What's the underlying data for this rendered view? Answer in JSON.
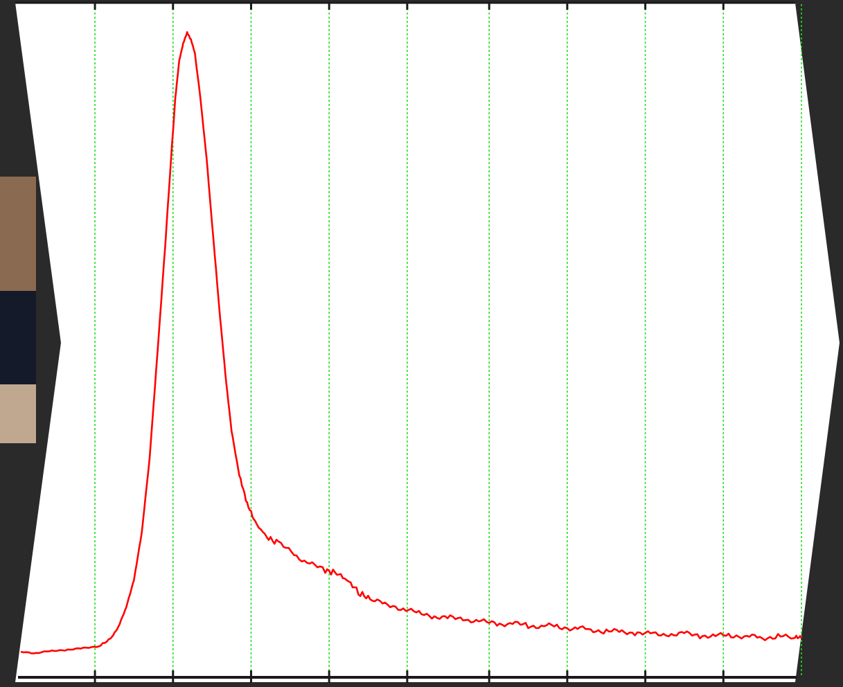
{
  "chart_data": {
    "type": "line",
    "title": "",
    "xlabel": "",
    "ylabel": "",
    "xlim": [
      0,
      100
    ],
    "ylim": [
      0,
      100
    ],
    "grid": {
      "vertical": true,
      "horizontal": false,
      "color": "#22dd22",
      "style": "dotted"
    },
    "legend": "none",
    "x_gridlines": [
      9.5,
      19.5,
      29.5,
      39.5,
      49.5,
      60,
      70,
      80,
      90,
      100
    ],
    "x_ticks": [
      9.5,
      19.5,
      29.5,
      39.5,
      49.5,
      60,
      70,
      80,
      90
    ],
    "series": [
      {
        "color": "#ff0000",
        "points": [
          [
            0,
            3.8
          ],
          [
            2,
            3.6
          ],
          [
            4,
            3.9
          ],
          [
            6,
            4.1
          ],
          [
            8,
            4.3
          ],
          [
            10,
            4.6
          ],
          [
            11.5,
            5.7
          ],
          [
            12.5,
            7.5
          ],
          [
            13.5,
            10.4
          ],
          [
            14.5,
            14.5
          ],
          [
            15.5,
            21.5
          ],
          [
            16.5,
            32.5
          ],
          [
            17.5,
            48
          ],
          [
            18.5,
            64
          ],
          [
            19.2,
            76
          ],
          [
            19.8,
            86
          ],
          [
            20.3,
            91.5
          ],
          [
            20.8,
            94
          ],
          [
            21.3,
            95.6
          ],
          [
            21.8,
            94.5
          ],
          [
            22.3,
            92.5
          ],
          [
            23,
            86
          ],
          [
            23.8,
            77
          ],
          [
            24.6,
            66
          ],
          [
            25.4,
            55
          ],
          [
            26.2,
            45
          ],
          [
            27,
            36.5
          ],
          [
            28,
            29.8
          ],
          [
            29,
            25.5
          ],
          [
            30,
            23
          ],
          [
            31.5,
            20.8
          ],
          [
            33,
            19.8
          ],
          [
            35,
            18.3
          ],
          [
            37,
            16.8
          ],
          [
            39,
            15.8
          ],
          [
            40.5,
            15.5
          ],
          [
            42,
            14.2
          ],
          [
            43.5,
            12.4
          ],
          [
            45,
            11.5
          ],
          [
            47,
            10.7
          ],
          [
            49,
            10.2
          ],
          [
            51,
            9.5
          ],
          [
            53,
            9.0
          ],
          [
            55,
            8.8
          ],
          [
            57,
            8.6
          ],
          [
            59,
            8.2
          ],
          [
            61,
            8.0
          ],
          [
            63,
            7.9
          ],
          [
            65,
            7.7
          ],
          [
            67,
            7.6
          ],
          [
            69,
            7.5
          ],
          [
            71,
            7.3
          ],
          [
            73,
            7.0
          ],
          [
            75,
            6.9
          ],
          [
            77,
            6.7
          ],
          [
            79,
            6.6
          ],
          [
            81,
            6.4
          ],
          [
            83,
            6.3
          ],
          [
            85,
            6.5
          ],
          [
            87,
            6.2
          ],
          [
            89,
            6.1
          ],
          [
            91,
            6.3
          ],
          [
            93,
            6.0
          ],
          [
            95,
            5.9
          ],
          [
            97,
            6.1
          ],
          [
            99,
            5.7
          ],
          [
            100,
            5.8
          ]
        ]
      }
    ]
  }
}
